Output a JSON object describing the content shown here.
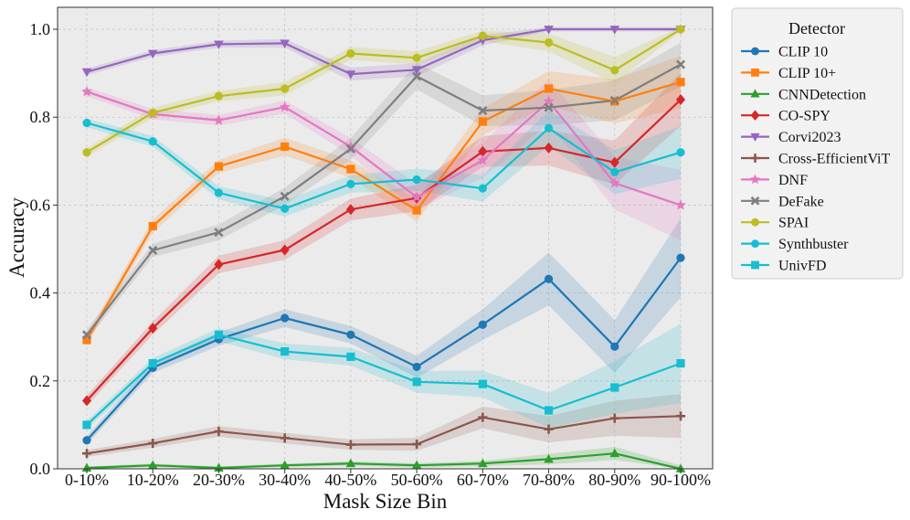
{
  "chart_data": {
    "type": "line",
    "title": "",
    "xlabel": "Mask Size Bin",
    "ylabel": "Accuracy",
    "ylim": [
      0,
      1.05
    ],
    "yticks": [
      0.0,
      0.2,
      0.4,
      0.6,
      0.8,
      1.0
    ],
    "ytick_labels": [
      "0.0",
      "0.2",
      "0.4",
      "0.6",
      "0.8",
      "1.0"
    ],
    "grid": true,
    "legend_title": "Detector",
    "legend_position": "outside-right",
    "categories": [
      "0-10%",
      "10-20%",
      "20-30%",
      "30-40%",
      "40-50%",
      "50-60%",
      "60-70%",
      "70-80%",
      "80-90%",
      "90-100%"
    ],
    "series": [
      {
        "name": "CLIP 10",
        "color": "#1f77b4",
        "marker": "circle",
        "values": [
          0.065,
          0.23,
          0.295,
          0.343,
          0.305,
          0.232,
          0.328,
          0.432,
          0.278,
          0.48
        ],
        "band": [
          0.01,
          0.012,
          0.015,
          0.02,
          0.02,
          0.025,
          0.035,
          0.06,
          0.06,
          0.09
        ]
      },
      {
        "name": "CLIP 10+",
        "color": "#ff7f0e",
        "marker": "square",
        "values": [
          0.293,
          0.552,
          0.688,
          0.733,
          0.682,
          0.588,
          0.79,
          0.865,
          0.836,
          0.88
        ],
        "band": [
          0.012,
          0.015,
          0.015,
          0.02,
          0.02,
          0.025,
          0.03,
          0.04,
          0.05,
          0.06
        ]
      },
      {
        "name": "CNNDetection",
        "color": "#2ca02c",
        "marker": "triangle-up",
        "values": [
          0.002,
          0.008,
          0.002,
          0.008,
          0.012,
          0.008,
          0.012,
          0.022,
          0.035,
          0.0
        ],
        "band": [
          0.003,
          0.004,
          0.003,
          0.004,
          0.005,
          0.005,
          0.006,
          0.012,
          0.015,
          0.008
        ]
      },
      {
        "name": "CO-SPY",
        "color": "#d62728",
        "marker": "diamond",
        "values": [
          0.155,
          0.32,
          0.465,
          0.498,
          0.59,
          0.616,
          0.722,
          0.73,
          0.697,
          0.84
        ],
        "band": [
          0.012,
          0.015,
          0.02,
          0.022,
          0.025,
          0.03,
          0.035,
          0.04,
          0.05,
          0.06
        ]
      },
      {
        "name": "Corvi2023",
        "color": "#9467bd",
        "marker": "triangle-down",
        "values": [
          0.903,
          0.945,
          0.966,
          0.968,
          0.898,
          0.908,
          0.975,
          1.0,
          1.0,
          1.0
        ],
        "band": [
          0.008,
          0.008,
          0.008,
          0.01,
          0.015,
          0.015,
          0.012,
          0.005,
          0.005,
          0.005
        ]
      },
      {
        "name": "Cross-EfficientViT",
        "color": "#8c564b",
        "marker": "plus",
        "values": [
          0.035,
          0.058,
          0.085,
          0.07,
          0.055,
          0.056,
          0.117,
          0.09,
          0.115,
          0.12
        ],
        "band": [
          0.008,
          0.01,
          0.012,
          0.012,
          0.012,
          0.015,
          0.025,
          0.03,
          0.04,
          0.05
        ]
      },
      {
        "name": "DNF",
        "color": "#e377c2",
        "marker": "star",
        "values": [
          0.858,
          0.807,
          0.793,
          0.823,
          0.733,
          0.618,
          0.702,
          0.836,
          0.65,
          0.6
        ],
        "band": [
          0.01,
          0.012,
          0.012,
          0.015,
          0.02,
          0.03,
          0.04,
          0.05,
          0.06,
          0.08
        ]
      },
      {
        "name": "DeFake",
        "color": "#7f7f7f",
        "marker": "x",
        "values": [
          0.305,
          0.497,
          0.538,
          0.62,
          0.728,
          0.893,
          0.815,
          0.822,
          0.838,
          0.92
        ],
        "band": [
          0.012,
          0.015,
          0.018,
          0.02,
          0.025,
          0.03,
          0.035,
          0.04,
          0.045,
          0.05
        ]
      },
      {
        "name": "SPAI",
        "color": "#bcbd22",
        "marker": "circle",
        "values": [
          0.72,
          0.81,
          0.848,
          0.865,
          0.945,
          0.935,
          0.985,
          0.97,
          0.907,
          1.0
        ],
        "band": [
          0.01,
          0.012,
          0.012,
          0.015,
          0.015,
          0.015,
          0.012,
          0.02,
          0.03,
          0.005
        ]
      },
      {
        "name": "Synthbuster",
        "color": "#17becf",
        "marker": "circle",
        "values": [
          0.787,
          0.745,
          0.628,
          0.592,
          0.648,
          0.658,
          0.638,
          0.775,
          0.675,
          0.72
        ],
        "band": [
          0.01,
          0.012,
          0.015,
          0.018,
          0.02,
          0.025,
          0.03,
          0.04,
          0.05,
          0.06
        ]
      },
      {
        "name": "UnivFD",
        "color": "#17becf",
        "marker": "square",
        "values": [
          0.1,
          0.24,
          0.305,
          0.267,
          0.255,
          0.198,
          0.193,
          0.133,
          0.185,
          0.24
        ],
        "band": [
          0.01,
          0.012,
          0.015,
          0.018,
          0.02,
          0.025,
          0.03,
          0.04,
          0.06,
          0.09
        ]
      }
    ]
  }
}
